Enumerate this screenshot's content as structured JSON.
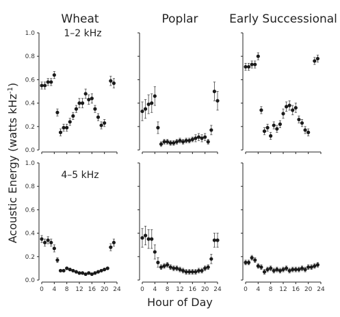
{
  "chart_data": {
    "type": "scatter",
    "layout": "3 columns x 2 rows small multiples",
    "columns": [
      "Wheat",
      "Poplar",
      "Early Successional"
    ],
    "rows": [
      "1–2 kHz",
      "4–5 kHz"
    ],
    "ylabel": "Acoustic Energy (watts kHz",
    "ylabel_sup": "-1",
    "ylabel_close": ")",
    "xlabel": "Hour of Day",
    "x_ticks": [
      "0",
      "4",
      "8",
      "12",
      "16",
      "20",
      "24"
    ],
    "x_tick_values": [
      0,
      4,
      8,
      12,
      16,
      20,
      24
    ],
    "y_ticks": [
      "0.0",
      "0.2",
      "0.4",
      "0.6",
      "0.8",
      "1.0"
    ],
    "y_tick_values": [
      0.0,
      0.2,
      0.4,
      0.6,
      0.8,
      1.0
    ],
    "xlim": [
      0,
      24
    ],
    "ylim": [
      0,
      1.0
    ],
    "marker_color": "#1a1a1a",
    "panels": [
      {
        "column": "Wheat",
        "row": "1–2 kHz",
        "points": [
          {
            "x": 0,
            "y": 0.55,
            "err": 0.03
          },
          {
            "x": 1,
            "y": 0.55,
            "err": 0.03
          },
          {
            "x": 2,
            "y": 0.58,
            "err": 0.03
          },
          {
            "x": 3,
            "y": 0.58,
            "err": 0.03
          },
          {
            "x": 4,
            "y": 0.64,
            "err": 0.03
          },
          {
            "x": 5,
            "y": 0.32,
            "err": 0.03
          },
          {
            "x": 6,
            "y": 0.15,
            "err": 0.03
          },
          {
            "x": 7,
            "y": 0.19,
            "err": 0.03
          },
          {
            "x": 8,
            "y": 0.19,
            "err": 0.03
          },
          {
            "x": 9,
            "y": 0.24,
            "err": 0.03
          },
          {
            "x": 10,
            "y": 0.29,
            "err": 0.03
          },
          {
            "x": 11,
            "y": 0.35,
            "err": 0.03
          },
          {
            "x": 12,
            "y": 0.4,
            "err": 0.04
          },
          {
            "x": 13,
            "y": 0.4,
            "err": 0.04
          },
          {
            "x": 14,
            "y": 0.48,
            "err": 0.04
          },
          {
            "x": 15,
            "y": 0.43,
            "err": 0.04
          },
          {
            "x": 16,
            "y": 0.44,
            "err": 0.04
          },
          {
            "x": 17,
            "y": 0.35,
            "err": 0.03
          },
          {
            "x": 18,
            "y": 0.28,
            "err": 0.03
          },
          {
            "x": 19,
            "y": 0.21,
            "err": 0.03
          },
          {
            "x": 20,
            "y": 0.23,
            "err": 0.03
          },
          {
            "x": 22,
            "y": 0.59,
            "err": 0.04
          },
          {
            "x": 23,
            "y": 0.57,
            "err": 0.04
          }
        ]
      },
      {
        "column": "Poplar",
        "row": "1–2 kHz",
        "points": [
          {
            "x": 0,
            "y": 0.33,
            "err": 0.08
          },
          {
            "x": 1,
            "y": 0.35,
            "err": 0.08
          },
          {
            "x": 2,
            "y": 0.39,
            "err": 0.08
          },
          {
            "x": 3,
            "y": 0.4,
            "err": 0.08
          },
          {
            "x": 4,
            "y": 0.46,
            "err": 0.08
          },
          {
            "x": 5,
            "y": 0.19,
            "err": 0.05
          },
          {
            "x": 6,
            "y": 0.05,
            "err": 0.02
          },
          {
            "x": 7,
            "y": 0.07,
            "err": 0.02
          },
          {
            "x": 8,
            "y": 0.07,
            "err": 0.02
          },
          {
            "x": 9,
            "y": 0.06,
            "err": 0.02
          },
          {
            "x": 10,
            "y": 0.06,
            "err": 0.02
          },
          {
            "x": 11,
            "y": 0.07,
            "err": 0.02
          },
          {
            "x": 12,
            "y": 0.08,
            "err": 0.02
          },
          {
            "x": 13,
            "y": 0.07,
            "err": 0.02
          },
          {
            "x": 14,
            "y": 0.08,
            "err": 0.02
          },
          {
            "x": 15,
            "y": 0.08,
            "err": 0.02
          },
          {
            "x": 16,
            "y": 0.09,
            "err": 0.02
          },
          {
            "x": 17,
            "y": 0.1,
            "err": 0.03
          },
          {
            "x": 18,
            "y": 0.11,
            "err": 0.03
          },
          {
            "x": 19,
            "y": 0.1,
            "err": 0.03
          },
          {
            "x": 20,
            "y": 0.11,
            "err": 0.03
          },
          {
            "x": 21,
            "y": 0.07,
            "err": 0.02
          },
          {
            "x": 22,
            "y": 0.17,
            "err": 0.04
          },
          {
            "x": 23,
            "y": 0.5,
            "err": 0.08
          },
          {
            "x": 24,
            "y": 0.42,
            "err": 0.08
          }
        ]
      },
      {
        "column": "Early Successional",
        "row": "1–2 kHz",
        "points": [
          {
            "x": 0,
            "y": 0.71,
            "err": 0.03
          },
          {
            "x": 1,
            "y": 0.71,
            "err": 0.03
          },
          {
            "x": 2,
            "y": 0.73,
            "err": 0.03
          },
          {
            "x": 3,
            "y": 0.73,
            "err": 0.03
          },
          {
            "x": 4,
            "y": 0.8,
            "err": 0.03
          },
          {
            "x": 5,
            "y": 0.34,
            "err": 0.03
          },
          {
            "x": 6,
            "y": 0.16,
            "err": 0.03
          },
          {
            "x": 7,
            "y": 0.19,
            "err": 0.03
          },
          {
            "x": 8,
            "y": 0.12,
            "err": 0.03
          },
          {
            "x": 9,
            "y": 0.21,
            "err": 0.03
          },
          {
            "x": 10,
            "y": 0.18,
            "err": 0.03
          },
          {
            "x": 11,
            "y": 0.22,
            "err": 0.03
          },
          {
            "x": 12,
            "y": 0.31,
            "err": 0.04
          },
          {
            "x": 13,
            "y": 0.37,
            "err": 0.04
          },
          {
            "x": 14,
            "y": 0.38,
            "err": 0.04
          },
          {
            "x": 15,
            "y": 0.34,
            "err": 0.04
          },
          {
            "x": 16,
            "y": 0.36,
            "err": 0.04
          },
          {
            "x": 17,
            "y": 0.26,
            "err": 0.03
          },
          {
            "x": 18,
            "y": 0.23,
            "err": 0.03
          },
          {
            "x": 19,
            "y": 0.17,
            "err": 0.03
          },
          {
            "x": 20,
            "y": 0.15,
            "err": 0.03
          },
          {
            "x": 22,
            "y": 0.76,
            "err": 0.03
          },
          {
            "x": 23,
            "y": 0.78,
            "err": 0.03
          }
        ]
      },
      {
        "column": "Wheat",
        "row": "4–5 kHz",
        "points": [
          {
            "x": 0,
            "y": 0.35,
            "err": 0.03
          },
          {
            "x": 1,
            "y": 0.32,
            "err": 0.03
          },
          {
            "x": 2,
            "y": 0.34,
            "err": 0.03
          },
          {
            "x": 3,
            "y": 0.32,
            "err": 0.03
          },
          {
            "x": 4,
            "y": 0.27,
            "err": 0.03
          },
          {
            "x": 5,
            "y": 0.17,
            "err": 0.02
          },
          {
            "x": 6,
            "y": 0.08,
            "err": 0.01
          },
          {
            "x": 7,
            "y": 0.08,
            "err": 0.01
          },
          {
            "x": 8,
            "y": 0.1,
            "err": 0.01
          },
          {
            "x": 9,
            "y": 0.09,
            "err": 0.01
          },
          {
            "x": 10,
            "y": 0.08,
            "err": 0.01
          },
          {
            "x": 11,
            "y": 0.07,
            "err": 0.01
          },
          {
            "x": 12,
            "y": 0.06,
            "err": 0.01
          },
          {
            "x": 13,
            "y": 0.06,
            "err": 0.01
          },
          {
            "x": 14,
            "y": 0.05,
            "err": 0.01
          },
          {
            "x": 15,
            "y": 0.06,
            "err": 0.01
          },
          {
            "x": 16,
            "y": 0.05,
            "err": 0.01
          },
          {
            "x": 17,
            "y": 0.06,
            "err": 0.01
          },
          {
            "x": 18,
            "y": 0.07,
            "err": 0.01
          },
          {
            "x": 19,
            "y": 0.08,
            "err": 0.01
          },
          {
            "x": 20,
            "y": 0.09,
            "err": 0.01
          },
          {
            "x": 21,
            "y": 0.1,
            "err": 0.01
          },
          {
            "x": 22,
            "y": 0.28,
            "err": 0.03
          },
          {
            "x": 23,
            "y": 0.32,
            "err": 0.03
          }
        ]
      },
      {
        "column": "Poplar",
        "row": "4–5 kHz",
        "points": [
          {
            "x": 0,
            "y": 0.36,
            "err": 0.08
          },
          {
            "x": 1,
            "y": 0.38,
            "err": 0.08
          },
          {
            "x": 2,
            "y": 0.35,
            "err": 0.08
          },
          {
            "x": 3,
            "y": 0.35,
            "err": 0.08
          },
          {
            "x": 4,
            "y": 0.24,
            "err": 0.06
          },
          {
            "x": 5,
            "y": 0.15,
            "err": 0.04
          },
          {
            "x": 6,
            "y": 0.11,
            "err": 0.02
          },
          {
            "x": 7,
            "y": 0.12,
            "err": 0.02
          },
          {
            "x": 8,
            "y": 0.13,
            "err": 0.02
          },
          {
            "x": 9,
            "y": 0.11,
            "err": 0.02
          },
          {
            "x": 10,
            "y": 0.1,
            "err": 0.02
          },
          {
            "x": 11,
            "y": 0.1,
            "err": 0.02
          },
          {
            "x": 12,
            "y": 0.09,
            "err": 0.02
          },
          {
            "x": 13,
            "y": 0.08,
            "err": 0.02
          },
          {
            "x": 14,
            "y": 0.07,
            "err": 0.02
          },
          {
            "x": 15,
            "y": 0.07,
            "err": 0.02
          },
          {
            "x": 16,
            "y": 0.07,
            "err": 0.02
          },
          {
            "x": 17,
            "y": 0.07,
            "err": 0.02
          },
          {
            "x": 18,
            "y": 0.08,
            "err": 0.02
          },
          {
            "x": 19,
            "y": 0.08,
            "err": 0.02
          },
          {
            "x": 20,
            "y": 0.1,
            "err": 0.02
          },
          {
            "x": 21,
            "y": 0.11,
            "err": 0.02
          },
          {
            "x": 22,
            "y": 0.18,
            "err": 0.04
          },
          {
            "x": 23,
            "y": 0.34,
            "err": 0.06
          },
          {
            "x": 24,
            "y": 0.34,
            "err": 0.06
          }
        ]
      },
      {
        "column": "Early Successional",
        "row": "4–5 kHz",
        "points": [
          {
            "x": 0,
            "y": 0.15,
            "err": 0.02
          },
          {
            "x": 1,
            "y": 0.15,
            "err": 0.02
          },
          {
            "x": 2,
            "y": 0.19,
            "err": 0.02
          },
          {
            "x": 3,
            "y": 0.17,
            "err": 0.02
          },
          {
            "x": 4,
            "y": 0.12,
            "err": 0.02
          },
          {
            "x": 5,
            "y": 0.11,
            "err": 0.02
          },
          {
            "x": 6,
            "y": 0.07,
            "err": 0.02
          },
          {
            "x": 7,
            "y": 0.09,
            "err": 0.02
          },
          {
            "x": 8,
            "y": 0.1,
            "err": 0.02
          },
          {
            "x": 9,
            "y": 0.08,
            "err": 0.02
          },
          {
            "x": 10,
            "y": 0.09,
            "err": 0.02
          },
          {
            "x": 11,
            "y": 0.08,
            "err": 0.02
          },
          {
            "x": 12,
            "y": 0.09,
            "err": 0.02
          },
          {
            "x": 13,
            "y": 0.1,
            "err": 0.02
          },
          {
            "x": 14,
            "y": 0.08,
            "err": 0.02
          },
          {
            "x": 15,
            "y": 0.09,
            "err": 0.02
          },
          {
            "x": 16,
            "y": 0.09,
            "err": 0.02
          },
          {
            "x": 17,
            "y": 0.09,
            "err": 0.02
          },
          {
            "x": 18,
            "y": 0.1,
            "err": 0.02
          },
          {
            "x": 19,
            "y": 0.09,
            "err": 0.02
          },
          {
            "x": 20,
            "y": 0.11,
            "err": 0.02
          },
          {
            "x": 21,
            "y": 0.11,
            "err": 0.02
          },
          {
            "x": 22,
            "y": 0.12,
            "err": 0.02
          },
          {
            "x": 23,
            "y": 0.13,
            "err": 0.02
          }
        ]
      }
    ]
  }
}
